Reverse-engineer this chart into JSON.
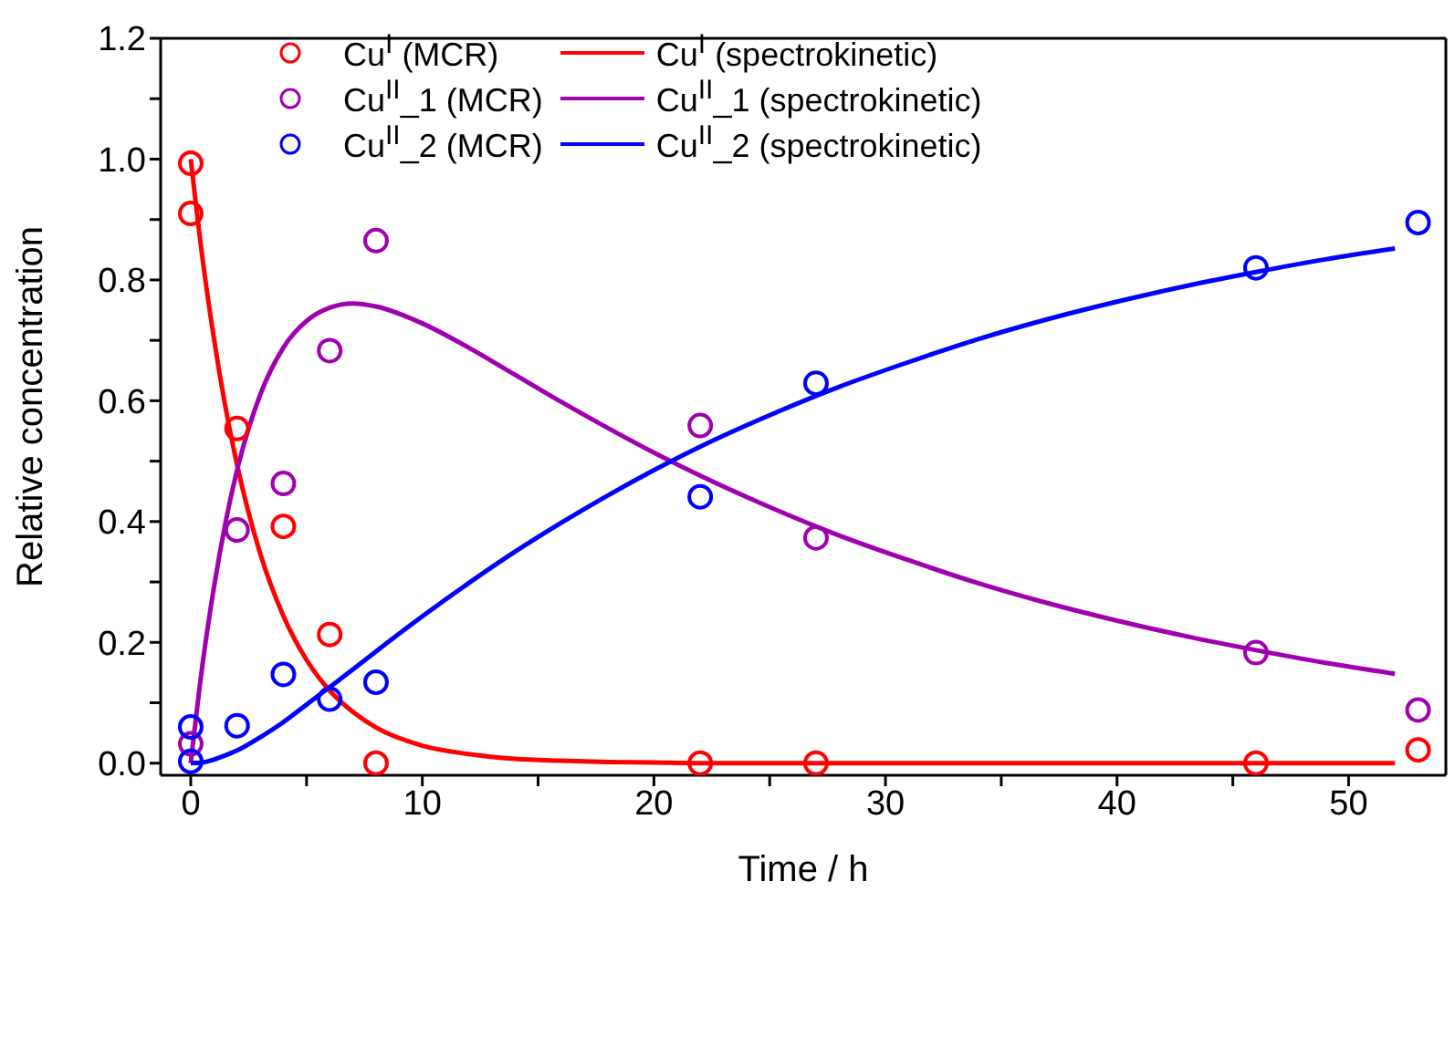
{
  "chart_data": {
    "type": "scatter",
    "xlabel": "Time / h",
    "ylabel": "Relative concentration",
    "xlim": [
      -1.3,
      54.2
    ],
    "ylim": [
      -0.02,
      1.2
    ],
    "xticks": [
      0,
      {
        "value": 5,
        "label": null
      },
      10,
      {
        "value": 15,
        "label": null
      },
      20,
      {
        "value": 25,
        "label": null
      },
      30,
      {
        "value": 35,
        "label": null
      },
      40,
      {
        "value": 45,
        "label": null
      },
      50
    ],
    "yticks": [
      {
        "value": 0,
        "label": "0.0"
      },
      {
        "value": 0.1,
        "label": null
      },
      {
        "value": 0.2,
        "label": "0.2"
      },
      {
        "value": 0.3,
        "label": null
      },
      {
        "value": 0.4,
        "label": "0.4"
      },
      {
        "value": 0.5,
        "label": null
      },
      {
        "value": 0.6,
        "label": "0.6"
      },
      {
        "value": 0.7,
        "label": null
      },
      {
        "value": 0.8,
        "label": "0.8"
      },
      {
        "value": 0.9,
        "label": null
      },
      {
        "value": 1,
        "label": "1.0"
      },
      {
        "value": 1.1,
        "label": null
      },
      {
        "value": 1.2,
        "label": "1.2"
      }
    ],
    "legend": "top left",
    "grid": false,
    "series": [
      {
        "name": "Cu$^{I}$ (MCR)",
        "marker": "circle",
        "color": "#ff0000",
        "x": [
          0,
          0,
          2,
          4,
          6,
          8,
          22,
          27,
          46,
          53
        ],
        "values": [
          0.993,
          0.91,
          0.554,
          0.392,
          0.213,
          0,
          0,
          0,
          0,
          0.022
        ]
      },
      {
        "name": "Cu$^{I}$ (spectrokinetic)",
        "type": "line",
        "marker": "none",
        "color": "#ff0000",
        "x": [
          0,
          0.5,
          1,
          1.5,
          2,
          3,
          4,
          5,
          6,
          7,
          8,
          10,
          12,
          14,
          16,
          18,
          20,
          22,
          25,
          28,
          31,
          34,
          37,
          40,
          43,
          46,
          49,
          52
        ],
        "values": [
          1,
          0.838,
          0.703,
          0.589,
          0.494,
          0.347,
          0.244,
          0.171,
          0.12,
          0.085,
          0.059,
          0.029,
          0.015,
          0.007,
          0.004,
          0.002,
          0.001,
          0,
          0,
          0,
          0,
          0,
          0,
          0,
          0,
          0,
          0,
          0
        ]
      },
      {
        "name": "Cu$^{II}$_1 (MCR)",
        "marker": "circle",
        "color": "#a000b0",
        "x": [
          0,
          2,
          4,
          6,
          8,
          22,
          27,
          46,
          53
        ],
        "values": [
          0.032,
          0.386,
          0.463,
          0.683,
          0.865,
          0.559,
          0.373,
          0.183,
          0.088
        ]
      },
      {
        "name": "Cu$^{II}$_1 (spectrokinetic)",
        "type": "line",
        "marker": "none",
        "color": "#a000b0",
        "x": [
          0,
          0.5,
          1,
          1.5,
          2,
          3,
          4,
          5,
          6,
          7,
          8,
          10,
          12,
          14,
          16,
          18,
          20,
          22,
          25,
          28,
          31,
          34,
          37,
          40,
          43,
          46,
          49,
          52
        ],
        "values": [
          0,
          0.161,
          0.291,
          0.398,
          0.485,
          0.61,
          0.688,
          0.732,
          0.754,
          0.761,
          0.756,
          0.728,
          0.688,
          0.643,
          0.598,
          0.555,
          0.514,
          0.476,
          0.424,
          0.377,
          0.336,
          0.298,
          0.265,
          0.236,
          0.21,
          0.187,
          0.166,
          0.148
        ]
      },
      {
        "name": "Cu$^{II}$_2 (MCR)",
        "marker": "circle",
        "color": "#0000ff",
        "x": [
          0,
          0,
          2,
          4,
          6,
          8,
          22,
          27,
          46,
          53
        ],
        "values": [
          0.06,
          0.003,
          0.062,
          0.147,
          0.106,
          0.134,
          0.441,
          0.629,
          0.82,
          0.895
        ]
      },
      {
        "name": "Cu$^{II}$_2 (spectrokinetic)",
        "type": "line",
        "marker": "none",
        "color": "#0000ff",
        "x": [
          0,
          0.5,
          1,
          1.5,
          2,
          3,
          4,
          5,
          6,
          7,
          8,
          10,
          12,
          14,
          16,
          18,
          20,
          22,
          25,
          28,
          31,
          34,
          37,
          40,
          43,
          46,
          49,
          52
        ],
        "values": [
          0,
          0.001,
          0.006,
          0.013,
          0.021,
          0.043,
          0.068,
          0.097,
          0.126,
          0.155,
          0.185,
          0.243,
          0.298,
          0.35,
          0.398,
          0.443,
          0.485,
          0.524,
          0.576,
          0.623,
          0.664,
          0.702,
          0.735,
          0.764,
          0.79,
          0.813,
          0.834,
          0.852
        ]
      }
    ]
  }
}
